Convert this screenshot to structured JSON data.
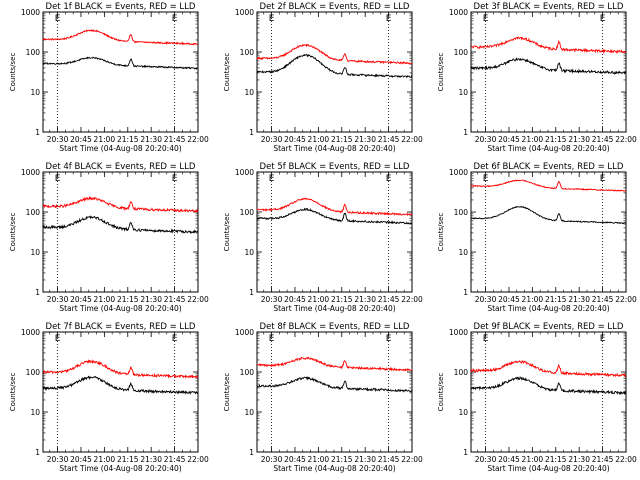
{
  "chart_data": {
    "type": "line",
    "shared": {
      "xlabel": "Start Time (04-Aug-08 20:20:40)",
      "ylabel": "Counts/sec",
      "y_scale": "log",
      "ylim": [
        1,
        1000
      ],
      "y_ticks": [
        "1",
        "10",
        "100",
        "1000"
      ],
      "x_ticks": [
        "20:30",
        "20:45",
        "21:00",
        "21:15",
        "21:30",
        "21:45",
        "22:00"
      ],
      "x_tick_minutes": [
        30,
        45,
        60,
        75,
        90,
        105,
        120
      ],
      "xlim_minutes": [
        20.67,
        120
      ],
      "vertical_markers_minutes": [
        30,
        105
      ],
      "marker_letters": [
        "E",
        "E"
      ],
      "series_colors": {
        "events": "#000000",
        "lld": "#ff0000"
      }
    },
    "panels": [
      {
        "title": "Det 1f BLACK = Events, RED = LLD",
        "red_base": 210,
        "black_base": 52,
        "red_bump": 1.8,
        "black_bump": 1.5,
        "noise": 0.04
      },
      {
        "title": "Det 2f BLACK = Events, RED = LLD",
        "red_base": 70,
        "black_base": 32,
        "red_bump": 2.3,
        "black_bump": 2.8,
        "noise": 0.05
      },
      {
        "title": "Det 3f BLACK = Events, RED = LLD",
        "red_base": 135,
        "black_base": 40,
        "red_bump": 1.8,
        "black_bump": 1.8,
        "noise": 0.07
      },
      {
        "title": "Det 4f BLACK = Events, RED = LLD",
        "red_base": 140,
        "black_base": 42,
        "red_bump": 1.7,
        "black_bump": 1.9,
        "noise": 0.07
      },
      {
        "title": "Det 5f BLACK = Events, RED = LLD",
        "red_base": 115,
        "black_base": 70,
        "red_bump": 2.0,
        "black_bump": 1.8,
        "noise": 0.05
      },
      {
        "title": "Det 6f BLACK = Events, RED = LLD",
        "red_base": 450,
        "black_base": 70,
        "red_bump": 1.5,
        "black_bump": 2.1,
        "noise": 0.03
      },
      {
        "title": "Det 7f BLACK = Events, RED = LLD",
        "red_base": 100,
        "black_base": 40,
        "red_bump": 2.0,
        "black_bump": 2.0,
        "noise": 0.07
      },
      {
        "title": "Det 8f BLACK = Events, RED = LLD",
        "red_base": 150,
        "black_base": 45,
        "red_bump": 1.6,
        "black_bump": 1.7,
        "noise": 0.06
      },
      {
        "title": "Det 9f BLACK = Events, RED = LLD",
        "red_base": 110,
        "black_base": 40,
        "red_bump": 1.8,
        "black_bump": 1.9,
        "noise": 0.07
      }
    ]
  }
}
